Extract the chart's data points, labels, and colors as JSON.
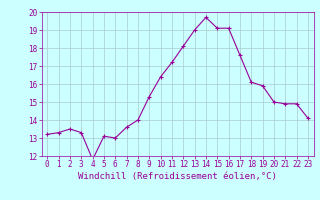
{
  "x": [
    0,
    1,
    2,
    3,
    4,
    5,
    6,
    7,
    8,
    9,
    10,
    11,
    12,
    13,
    14,
    15,
    16,
    17,
    18,
    19,
    20,
    21,
    22,
    23
  ],
  "y": [
    13.2,
    13.3,
    13.5,
    13.3,
    11.8,
    13.1,
    13.0,
    13.6,
    14.0,
    15.3,
    16.4,
    17.2,
    18.1,
    19.0,
    19.7,
    19.1,
    19.1,
    17.6,
    16.1,
    15.9,
    15.0,
    14.9,
    14.9,
    14.1
  ],
  "line_color": "#990099",
  "marker": "+",
  "marker_size": 3,
  "bg_color": "#ccffff",
  "grid_color": "#aacccc",
  "xlabel": "Windchill (Refroidissement éolien,°C)",
  "ylim": [
    12,
    20
  ],
  "xlim": [
    -0.5,
    23.5
  ],
  "yticks": [
    12,
    13,
    14,
    15,
    16,
    17,
    18,
    19,
    20
  ],
  "xticks": [
    0,
    1,
    2,
    3,
    4,
    5,
    6,
    7,
    8,
    9,
    10,
    11,
    12,
    13,
    14,
    15,
    16,
    17,
    18,
    19,
    20,
    21,
    22,
    23
  ],
  "tick_label_color": "#990099",
  "tick_label_size": 5.5,
  "xlabel_size": 6.5,
  "xlabel_color": "#990099",
  "line_width": 0.8,
  "axis_color": "#990099",
  "fig_width": 3.2,
  "fig_height": 2.0,
  "dpi": 100
}
